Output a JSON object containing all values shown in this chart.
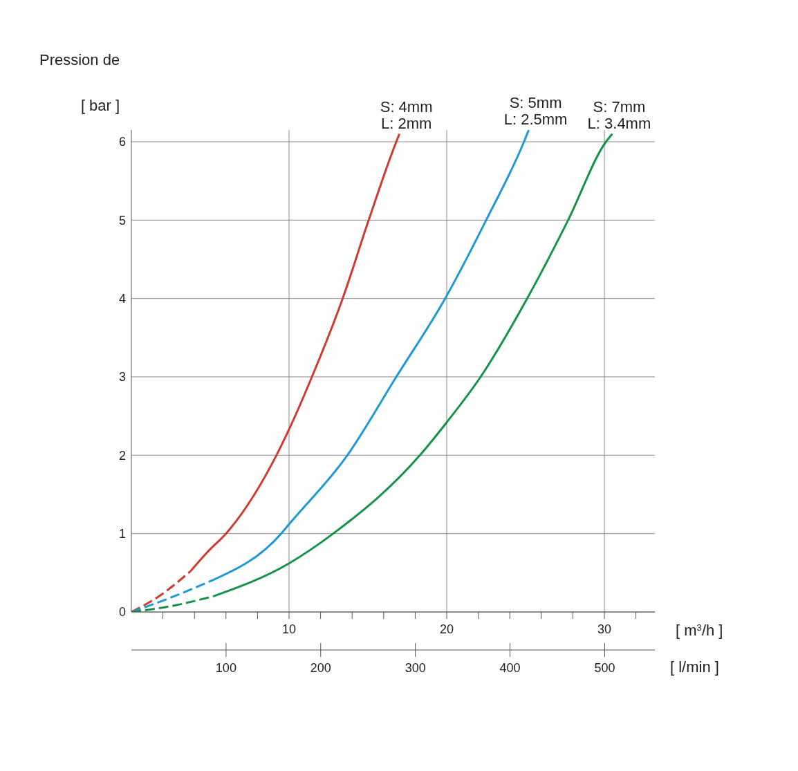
{
  "chart_data": {
    "type": "line",
    "title": "Pression de",
    "ylabel": "[ bar ]",
    "xlabel": "[ m$^{3}$/h ]",
    "x2label": "[ l/min ]",
    "xlim": [
      0,
      33.2
    ],
    "xticks": [
      {
        "value": 2,
        "label": null
      },
      {
        "value": 4,
        "label": null
      },
      {
        "value": 6,
        "label": null
      },
      {
        "value": 8,
        "label": null
      },
      10,
      {
        "value": 12,
        "label": null
      },
      {
        "value": 14,
        "label": null
      },
      {
        "value": 16,
        "label": null
      },
      {
        "value": 18,
        "label": null
      },
      20,
      {
        "value": 22,
        "label": null
      },
      {
        "value": 24,
        "label": null
      },
      {
        "value": 26,
        "label": null
      },
      {
        "value": 28,
        "label": null
      },
      30,
      {
        "value": 32,
        "label": null
      }
    ],
    "x2lim": [
      0,
      553
    ],
    "x2ticks": [
      100,
      200,
      300,
      400,
      500
    ],
    "ylim": [
      0,
      6.15
    ],
    "yticks": [
      0,
      1,
      2,
      3,
      4,
      5,
      6
    ],
    "grid": true,
    "legend": false,
    "marker": "none",
    "series": [
      {
        "color": "#d03a2f",
        "line_style": "dashed",
        "x": [
          0,
          1.75,
          3.75
        ],
        "values": [
          0,
          0.2,
          0.52
        ]
      },
      {
        "color": "#1d9ad6",
        "line_style": "dashed",
        "x": [
          0,
          2.2,
          5.2
        ],
        "values": [
          0,
          0.16,
          0.41
        ]
      },
      {
        "color": "#16924a",
        "line_style": "dashed",
        "x": [
          0,
          2.4,
          5.2
        ],
        "values": [
          0,
          0.07,
          0.2
        ]
      },
      {
        "name": "S: 4mm\nL: 2mm",
        "color": "#d03a2f",
        "line_style": "solid",
        "x": [
          3.75,
          4.85,
          6.0,
          9.2,
          10,
          11.45,
          13.4,
          15.05,
          16.8,
          17.0
        ],
        "values": [
          0.52,
          0.77,
          1,
          2,
          2.33,
          3,
          4,
          5,
          6,
          6.1
        ]
      },
      {
        "name": "S: 5mm\nL: 2.5mm",
        "color": "#1d9ad6",
        "line_style": "solid",
        "x": [
          5.2,
          9.5,
          10,
          13.7,
          16.8,
          19.9,
          22.5,
          24.9,
          25.2
        ],
        "values": [
          0.41,
          1,
          1.12,
          2,
          3,
          4,
          5,
          6,
          6.15
        ]
      },
      {
        "name": "S: 7mm\nL: 3.4mm",
        "color": "#16924a",
        "line_style": "solid",
        "x": [
          5.2,
          10,
          12.8,
          18.3,
          20,
          22.15,
          25.1,
          27.7,
          30.1,
          30.5
        ],
        "values": [
          0.2,
          0.62,
          1,
          2,
          2.42,
          3,
          4,
          5,
          6,
          6.1
        ]
      }
    ]
  }
}
